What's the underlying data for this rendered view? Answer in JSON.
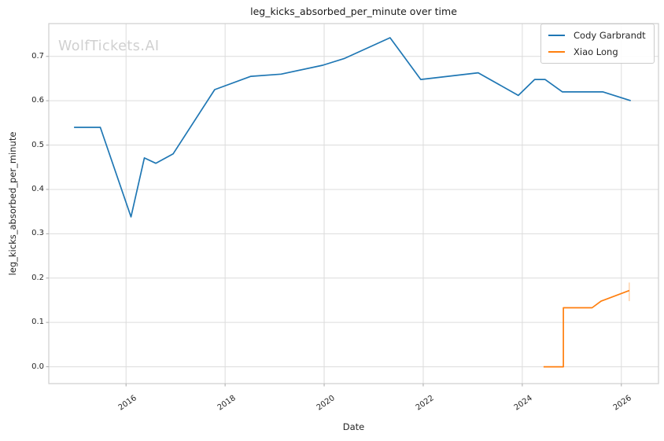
{
  "watermark": {
    "text": "WolfTickets.AI",
    "color": "#d0d0d0"
  },
  "chart_data": {
    "type": "line",
    "title": "leg_kicks_absorbed_per_minute over time",
    "xlabel": "Date",
    "ylabel": "leg_kicks_absorbed_per_minute",
    "xlim": [
      2014.44,
      2026.75
    ],
    "ylim": [
      -0.038,
      0.774
    ],
    "xticks": [
      2016,
      2018,
      2020,
      2022,
      2024,
      2026
    ],
    "yticks": [
      0.0,
      0.1,
      0.2,
      0.3,
      0.4,
      0.5,
      0.6,
      0.7
    ],
    "grid": true,
    "legend_position": "upper right",
    "series": [
      {
        "name": "Cody Garbrandt",
        "color": "#1f77b4",
        "x": [
          2014.95,
          2015.48,
          2016.1,
          2016.37,
          2016.6,
          2016.95,
          2017.79,
          2018.52,
          2019.13,
          2019.97,
          2020.4,
          2021.33,
          2021.95,
          2023.11,
          2023.92,
          2024.25,
          2024.46,
          2024.81,
          2025.63,
          2026.19
        ],
        "y": [
          0.54,
          0.54,
          0.338,
          0.471,
          0.459,
          0.48,
          0.625,
          0.655,
          0.66,
          0.68,
          0.695,
          0.742,
          0.648,
          0.663,
          0.612,
          0.648,
          0.648,
          0.62,
          0.62,
          0.6
        ]
      },
      {
        "name": "Xiao Long",
        "color": "#ff7f0e",
        "x": [
          2024.43,
          2024.83,
          2024.83,
          2025.41,
          2025.59,
          2026.16
        ],
        "y": [
          0.0,
          0.0,
          0.133,
          0.133,
          0.148,
          0.172
        ]
      }
    ],
    "annotations": [
      {
        "type": "vline_segment",
        "x": 2026.16,
        "y0": 0.148,
        "y1": 0.19,
        "color": "rgba(255,127,14,0.4)"
      }
    ]
  },
  "legend": {
    "items": [
      {
        "label": "Cody Garbrandt",
        "color": "#1f77b4"
      },
      {
        "label": "Xiao Long",
        "color": "#ff7f0e"
      }
    ]
  },
  "styles": {
    "background": "#ffffff",
    "grid_color": "#dcdcdc",
    "spine_color": "#cfcfcf",
    "tick_color": "#aaaaaa",
    "text_color": "#262626"
  }
}
